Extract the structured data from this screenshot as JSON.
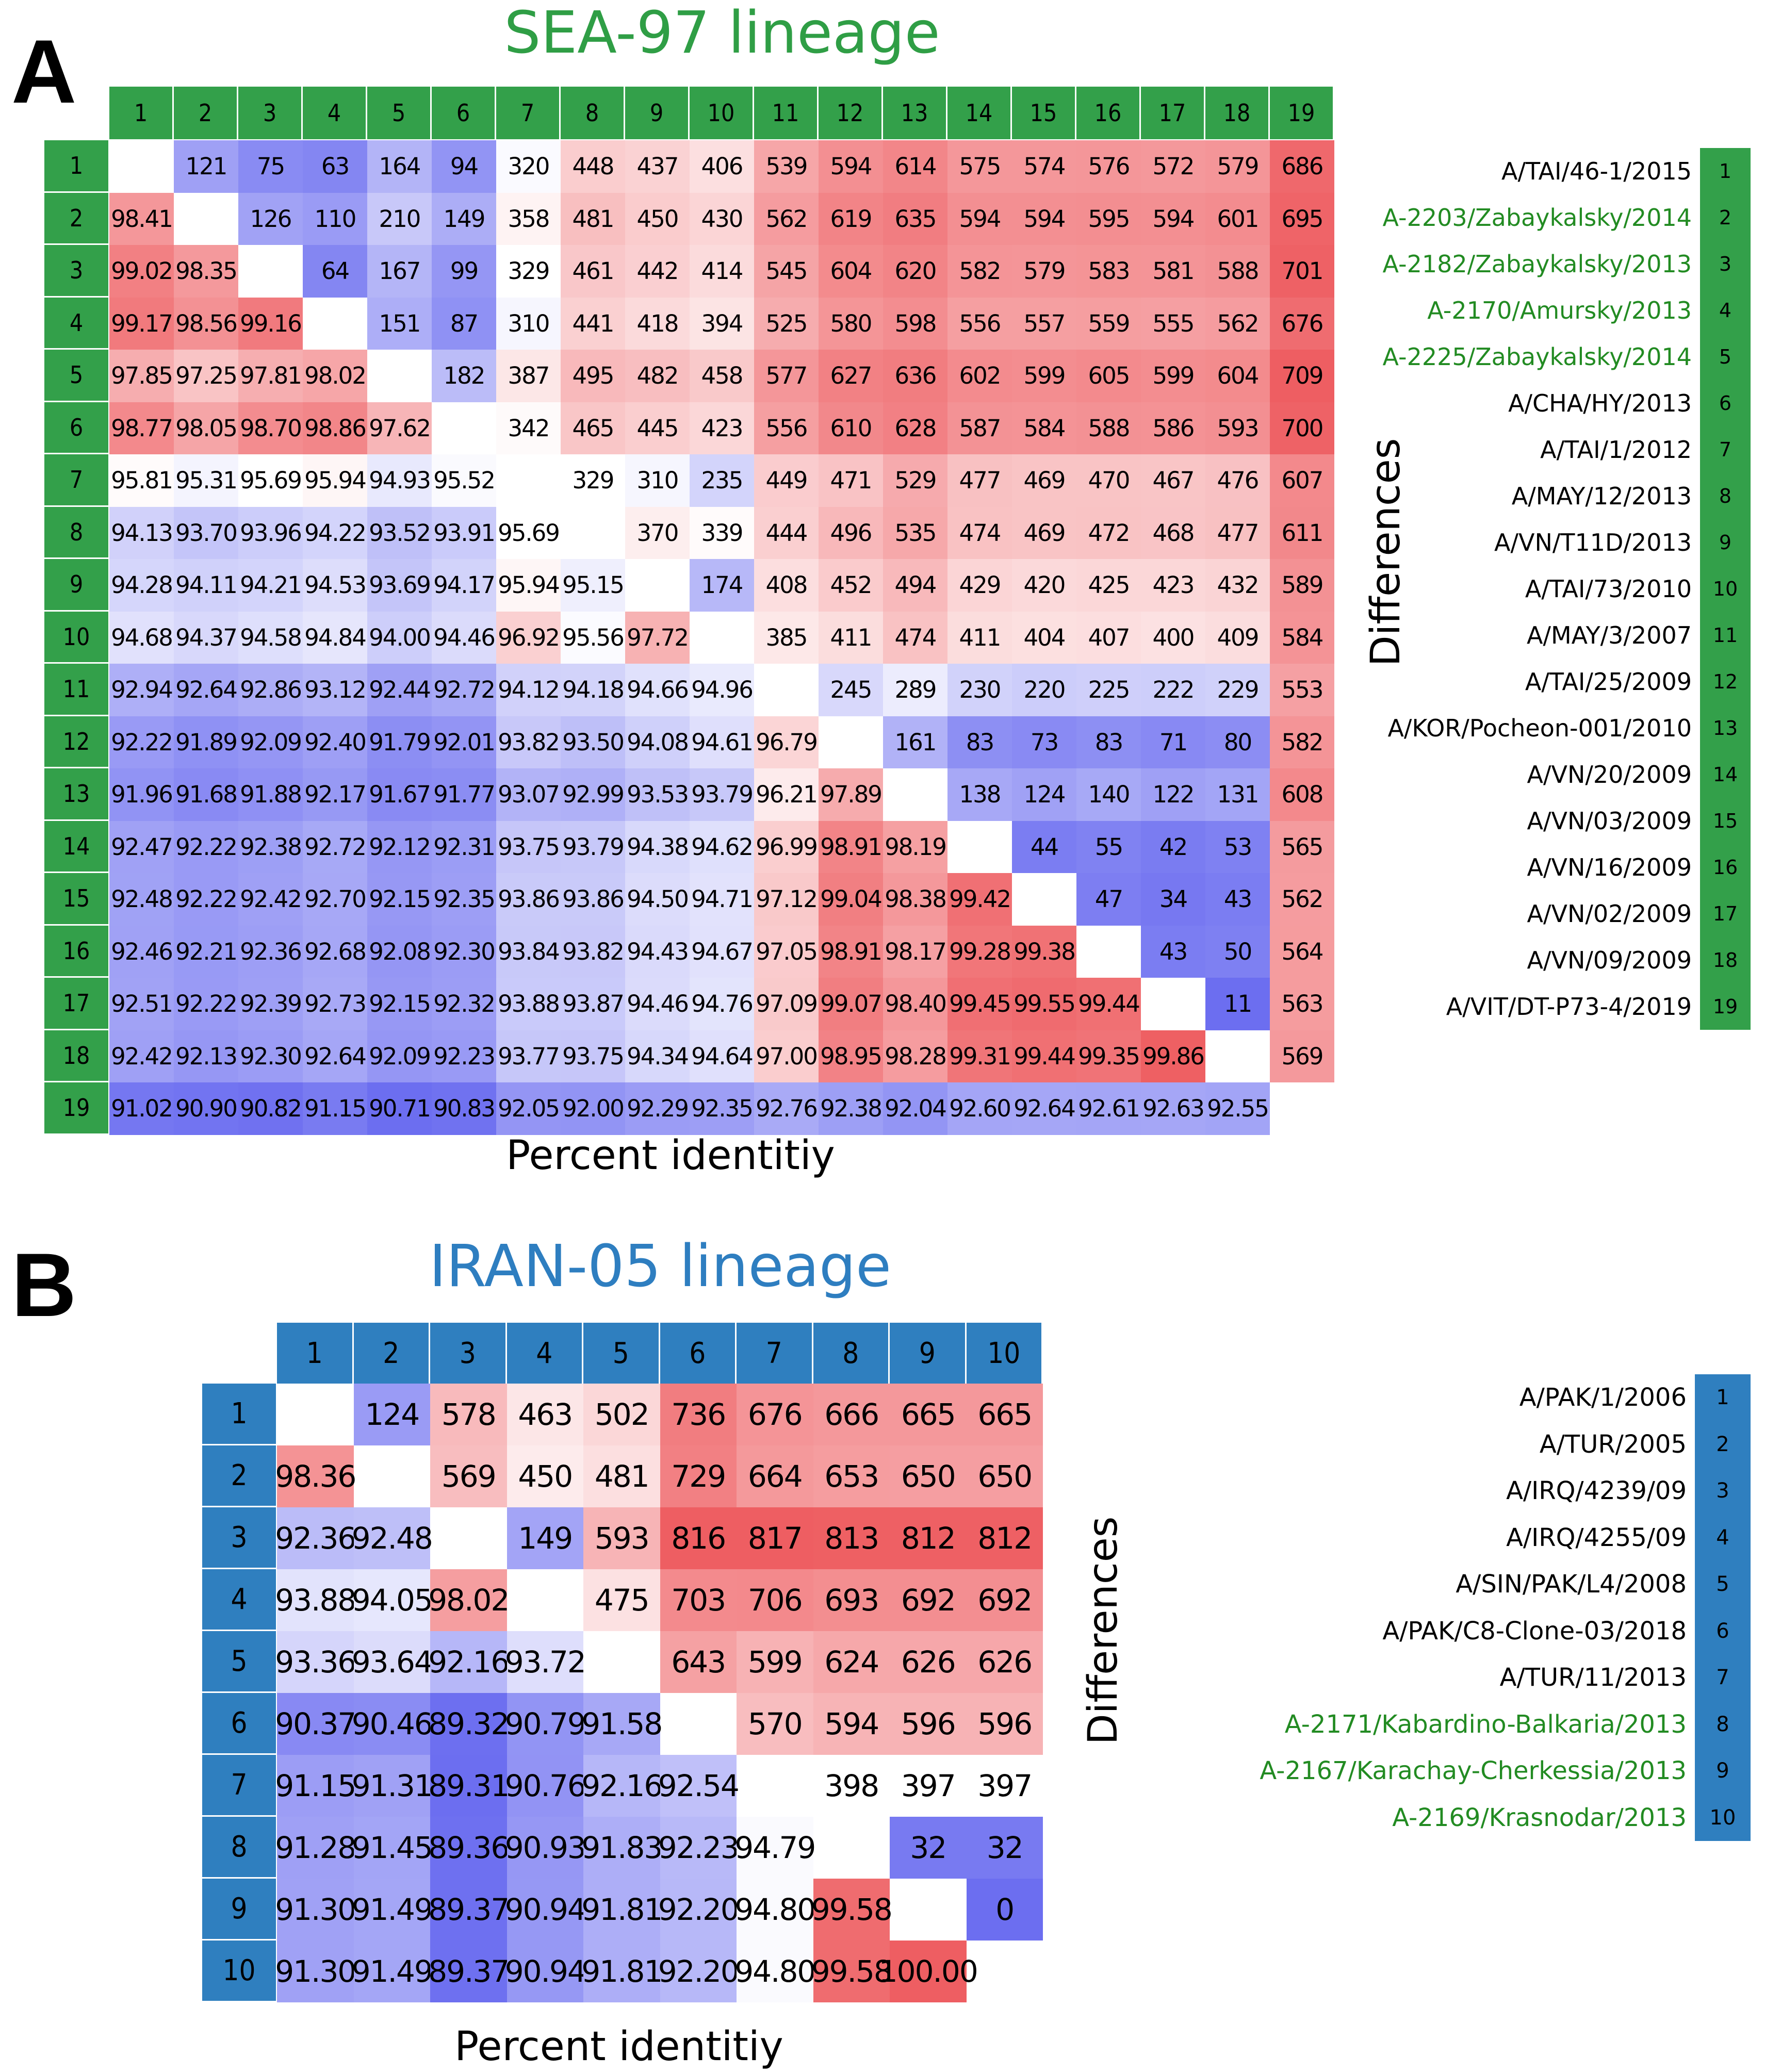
{
  "colors": {
    "sea_green": "#33a04a",
    "sea_title": "#2f9e45",
    "iran_blue": "#2f7fbf",
    "iran_title": "#2e7ec0",
    "strain_green": "#228b22",
    "high_red": "#ee5e62",
    "low_blue": "#6c6ef0",
    "mid_white": "#ffffff"
  },
  "panel_a": {
    "letter": "A",
    "title": "SEA-97 lineage",
    "xlabel": "Percent identitiy",
    "ylabel": "Differences",
    "strains": [
      {
        "idx": "1",
        "name": "A/TAI/46-1/2015",
        "highlight": false
      },
      {
        "idx": "2",
        "name": "A-2203/Zabaykalsky/2014",
        "highlight": true
      },
      {
        "idx": "3",
        "name": "A-2182/Zabaykalsky/2013",
        "highlight": true
      },
      {
        "idx": "4",
        "name": "A-2170/Amursky/2013",
        "highlight": true
      },
      {
        "idx": "5",
        "name": "A-2225/Zabaykalsky/2014",
        "highlight": true
      },
      {
        "idx": "6",
        "name": "A/CHA/HY/2013",
        "highlight": false
      },
      {
        "idx": "7",
        "name": "A/TAI/1/2012",
        "highlight": false
      },
      {
        "idx": "8",
        "name": "A/MAY/12/2013",
        "highlight": false
      },
      {
        "idx": "9",
        "name": "A/VN/T11D/2013",
        "highlight": false
      },
      {
        "idx": "10",
        "name": "A/TAI/73/2010",
        "highlight": false
      },
      {
        "idx": "11",
        "name": "A/MAY/3/2007",
        "highlight": false
      },
      {
        "idx": "12",
        "name": "A/TAI/25/2009",
        "highlight": false
      },
      {
        "idx": "13",
        "name": "A/KOR/Pocheon-001/2010",
        "highlight": false
      },
      {
        "idx": "14",
        "name": "A/VN/20/2009",
        "highlight": false
      },
      {
        "idx": "15",
        "name": "A/VN/03/2009",
        "highlight": false
      },
      {
        "idx": "16",
        "name": "A/VN/16/2009",
        "highlight": false
      },
      {
        "idx": "17",
        "name": "A/VN/02/2009",
        "highlight": false
      },
      {
        "idx": "18",
        "name": "A/VN/09/2009",
        "highlight": false
      },
      {
        "idx": "19",
        "name": "A/VIT/DT-P73-4/2019",
        "highlight": false
      }
    ]
  },
  "panel_b": {
    "letter": "B",
    "title": "IRAN-05 lineage",
    "xlabel": "Percent identitiy",
    "ylabel": "Differences",
    "strains": [
      {
        "idx": "1",
        "name": "A/PAK/1/2006",
        "highlight": false
      },
      {
        "idx": "2",
        "name": "A/TUR/2005",
        "highlight": false
      },
      {
        "idx": "3",
        "name": "A/IRQ/4239/09",
        "highlight": false
      },
      {
        "idx": "4",
        "name": "A/IRQ/4255/09",
        "highlight": false
      },
      {
        "idx": "5",
        "name": "A/SIN/PAK/L4/2008",
        "highlight": false
      },
      {
        "idx": "6",
        "name": "A/PAK/C8-Clone-03/2018",
        "highlight": false
      },
      {
        "idx": "7",
        "name": "A/TUR/11/2013",
        "highlight": false
      },
      {
        "idx": "8",
        "name": "A-2171/Kabardino-Balkaria/2013",
        "highlight": true
      },
      {
        "idx": "9",
        "name": "A-2167/Karachay-Cherkessia/2013",
        "highlight": true
      },
      {
        "idx": "10",
        "name": "A-2169/Krasnodar/2013",
        "highlight": true
      }
    ]
  },
  "chart_data": [
    {
      "type": "heatmap",
      "title": "SEA-97 lineage",
      "xlabel": "Percent identitiy",
      "ylabel": "Differences",
      "labels": [
        "1",
        "2",
        "3",
        "4",
        "5",
        "6",
        "7",
        "8",
        "9",
        "10",
        "11",
        "12",
        "13",
        "14",
        "15",
        "16",
        "17",
        "18",
        "19"
      ],
      "matrix": [
        [
          "",
          "121",
          "75",
          "63",
          "164",
          "94",
          "320",
          "448",
          "437",
          "406",
          "539",
          "594",
          "614",
          "575",
          "574",
          "576",
          "572",
          "579",
          "686"
        ],
        [
          "98.41",
          "",
          "126",
          "110",
          "210",
          "149",
          "358",
          "481",
          "450",
          "430",
          "562",
          "619",
          "635",
          "594",
          "594",
          "595",
          "594",
          "601",
          "695"
        ],
        [
          "99.02",
          "98.35",
          "",
          "64",
          "167",
          "99",
          "329",
          "461",
          "442",
          "414",
          "545",
          "604",
          "620",
          "582",
          "579",
          "583",
          "581",
          "588",
          "701"
        ],
        [
          "99.17",
          "98.56",
          "99.16",
          "",
          "151",
          "87",
          "310",
          "441",
          "418",
          "394",
          "525",
          "580",
          "598",
          "556",
          "557",
          "559",
          "555",
          "562",
          "676"
        ],
        [
          "97.85",
          "97.25",
          "97.81",
          "98.02",
          "",
          "182",
          "387",
          "495",
          "482",
          "458",
          "577",
          "627",
          "636",
          "602",
          "599",
          "605",
          "599",
          "604",
          "709"
        ],
        [
          "98.77",
          "98.05",
          "98.70",
          "98.86",
          "97.62",
          "",
          "342",
          "465",
          "445",
          "423",
          "556",
          "610",
          "628",
          "587",
          "584",
          "588",
          "586",
          "593",
          "700"
        ],
        [
          "95.81",
          "95.31",
          "95.69",
          "95.94",
          "94.93",
          "95.52",
          "",
          "329",
          "310",
          "235",
          "449",
          "471",
          "529",
          "477",
          "469",
          "470",
          "467",
          "476",
          "607"
        ],
        [
          "94.13",
          "93.70",
          "93.96",
          "94.22",
          "93.52",
          "93.91",
          "95.69",
          "",
          "370",
          "339",
          "444",
          "496",
          "535",
          "474",
          "469",
          "472",
          "468",
          "477",
          "611"
        ],
        [
          "94.28",
          "94.11",
          "94.21",
          "94.53",
          "93.69",
          "94.17",
          "95.94",
          "95.15",
          "",
          "174",
          "408",
          "452",
          "494",
          "429",
          "420",
          "425",
          "423",
          "432",
          "589"
        ],
        [
          "94.68",
          "94.37",
          "94.58",
          "94.84",
          "94.00",
          "94.46",
          "96.92",
          "95.56",
          "97.72",
          "",
          "385",
          "411",
          "474",
          "411",
          "404",
          "407",
          "400",
          "409",
          "584"
        ],
        [
          "92.94",
          "92.64",
          "92.86",
          "93.12",
          "92.44",
          "92.72",
          "94.12",
          "94.18",
          "94.66",
          "94.96",
          "",
          "245",
          "289",
          "230",
          "220",
          "225",
          "222",
          "229",
          "553"
        ],
        [
          "92.22",
          "91.89",
          "92.09",
          "92.40",
          "91.79",
          "92.01",
          "93.82",
          "93.50",
          "94.08",
          "94.61",
          "96.79",
          "",
          "161",
          "83",
          "73",
          "83",
          "71",
          "80",
          "582"
        ],
        [
          "91.96",
          "91.68",
          "91.88",
          "92.17",
          "91.67",
          "91.77",
          "93.07",
          "92.99",
          "93.53",
          "93.79",
          "96.21",
          "97.89",
          "",
          "138",
          "124",
          "140",
          "122",
          "131",
          "608"
        ],
        [
          "92.47",
          "92.22",
          "92.38",
          "92.72",
          "92.12",
          "92.31",
          "93.75",
          "93.79",
          "94.38",
          "94.62",
          "96.99",
          "98.91",
          "98.19",
          "",
          "44",
          "55",
          "42",
          "53",
          "565"
        ],
        [
          "92.48",
          "92.22",
          "92.42",
          "92.70",
          "92.15",
          "92.35",
          "93.86",
          "93.86",
          "94.50",
          "94.71",
          "97.12",
          "99.04",
          "98.38",
          "99.42",
          "",
          "47",
          "34",
          "43",
          "562"
        ],
        [
          "92.46",
          "92.21",
          "92.36",
          "92.68",
          "92.08",
          "92.30",
          "93.84",
          "93.82",
          "94.43",
          "94.67",
          "97.05",
          "98.91",
          "98.17",
          "99.28",
          "99.38",
          "",
          "43",
          "50",
          "564"
        ],
        [
          "92.51",
          "92.22",
          "92.39",
          "92.73",
          "92.15",
          "92.32",
          "93.88",
          "93.87",
          "94.46",
          "94.76",
          "97.09",
          "99.07",
          "98.40",
          "99.45",
          "99.55",
          "99.44",
          "",
          "11",
          "563"
        ],
        [
          "92.42",
          "92.13",
          "92.30",
          "92.64",
          "92.09",
          "92.23",
          "93.77",
          "93.75",
          "94.34",
          "94.64",
          "97.00",
          "98.95",
          "98.28",
          "99.31",
          "99.44",
          "99.35",
          "99.86",
          "",
          "569"
        ],
        [
          "91.02",
          "90.90",
          "90.82",
          "91.15",
          "90.71",
          "90.83",
          "92.05",
          "92.00",
          "92.29",
          "92.35",
          "92.76",
          "92.38",
          "92.04",
          "92.60",
          "92.64",
          "92.61",
          "92.63",
          "92.55",
          ""
        ]
      ]
    },
    {
      "type": "heatmap",
      "title": "IRAN-05 lineage",
      "xlabel": "Percent identitiy",
      "ylabel": "Differences",
      "labels": [
        "1",
        "2",
        "3",
        "4",
        "5",
        "6",
        "7",
        "8",
        "9",
        "10"
      ],
      "matrix": [
        [
          "",
          "124",
          "578",
          "463",
          "502",
          "736",
          "676",
          "666",
          "665",
          "665"
        ],
        [
          "98.36",
          "",
          "569",
          "450",
          "481",
          "729",
          "664",
          "653",
          "650",
          "650"
        ],
        [
          "92.36",
          "92.48",
          "",
          "149",
          "593",
          "816",
          "817",
          "813",
          "812",
          "812"
        ],
        [
          "93.88",
          "94.05",
          "98.02",
          "",
          "475",
          "703",
          "706",
          "693",
          "692",
          "692"
        ],
        [
          "93.36",
          "93.64",
          "92.16",
          "93.72",
          "",
          "643",
          "599",
          "624",
          "626",
          "626"
        ],
        [
          "90.37",
          "90.46",
          "89.32",
          "90.79",
          "91.58",
          "",
          "570",
          "594",
          "596",
          "596"
        ],
        [
          "91.15",
          "91.31",
          "89.31",
          "90.76",
          "92.16",
          "92.54",
          "",
          "398",
          "397",
          "397"
        ],
        [
          "91.28",
          "91.45",
          "89.36",
          "90.93",
          "91.83",
          "92.23",
          "94.79",
          "",
          "32",
          "32"
        ],
        [
          "91.30",
          "91.49",
          "89.37",
          "90.94",
          "91.81",
          "92.20",
          "94.80",
          "99.58",
          "",
          "0"
        ],
        [
          "91.30",
          "91.49",
          "89.37",
          "90.94",
          "91.81",
          "92.20",
          "94.80",
          "99.58",
          "100.00",
          ""
        ]
      ]
    }
  ]
}
